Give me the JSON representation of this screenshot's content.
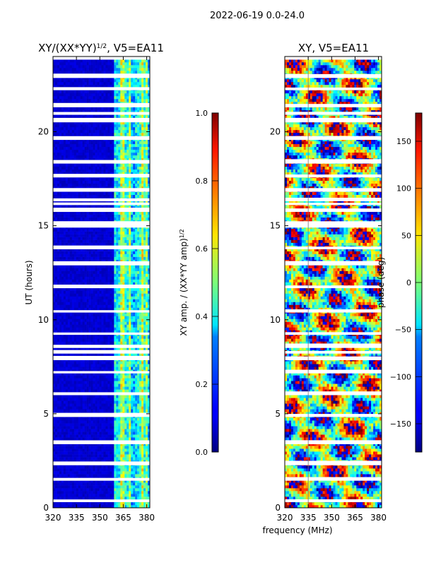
{
  "suptitle": "2022-06-19 0.0-24.0",
  "xlabel_shared": "frequency (MHz)",
  "chart_data": [
    {
      "type": "heatmap",
      "title_main": "XY/(XX*YY)",
      "title_sup": "1/2",
      "title_tail": ", V5=EA11",
      "xlabel": "",
      "ylabel": "UT (hours)",
      "xlim": [
        320,
        382
      ],
      "ylim": [
        0,
        24
      ],
      "x_ticks": [
        320,
        335,
        350,
        365,
        380
      ],
      "y_ticks": [
        0,
        5,
        10,
        15,
        20
      ],
      "colorbar": {
        "label_main": "XY amp. / (XX*YY amp)",
        "label_sup": "1/2",
        "range": [
          0.0,
          1.0
        ],
        "ticks": [
          "0.0",
          "0.2",
          "0.4",
          "0.6",
          "0.8",
          "1.0"
        ],
        "colormap": "jet"
      },
      "description": "Normalized cross-correlation amplitude vs frequency and UT; mostly near 0 below 360 MHz, elevated (0.3-0.6) in vertical stripes from ~360 to 382 MHz."
    },
    {
      "type": "heatmap",
      "title": "XY, V5=EA11",
      "xlabel": "",
      "ylabel": "",
      "xlim": [
        320,
        382
      ],
      "ylim": [
        0,
        24
      ],
      "x_ticks": [
        320,
        335,
        350,
        365,
        380
      ],
      "y_ticks": [
        0,
        5,
        10,
        15,
        20
      ],
      "colorbar": {
        "label": "phase (deg)",
        "range": [
          -180,
          180
        ],
        "ticks": [
          "−150",
          "−100",
          "−50",
          "0",
          "50",
          "100",
          "150"
        ],
        "colormap": "jet"
      },
      "description": "XY phase vs frequency and UT; phases spanning the full -180 to 180 range."
    }
  ]
}
